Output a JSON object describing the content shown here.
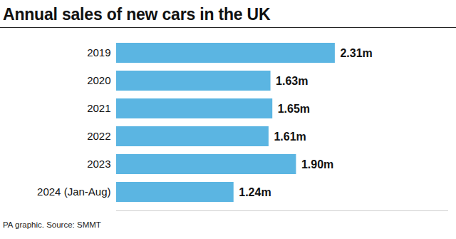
{
  "chart_data": {
    "type": "bar",
    "orientation": "horizontal",
    "title": "Annual sales of new cars in the UK",
    "caption": "PA graphic. Source: SMMT",
    "categories": [
      "2019",
      "2020",
      "2021",
      "2022",
      "2023",
      "2024 (Jan-Aug)"
    ],
    "values": [
      2.31,
      1.63,
      1.65,
      1.61,
      1.9,
      1.24
    ],
    "value_labels": [
      "2.31m",
      "1.63m",
      "1.65m",
      "1.61m",
      "1.90m",
      "1.24m"
    ],
    "color": "#5bb5e2",
    "xlim": [
      0,
      3.5
    ],
    "data_labels": true,
    "tick_labels": "y",
    "grid": false
  }
}
